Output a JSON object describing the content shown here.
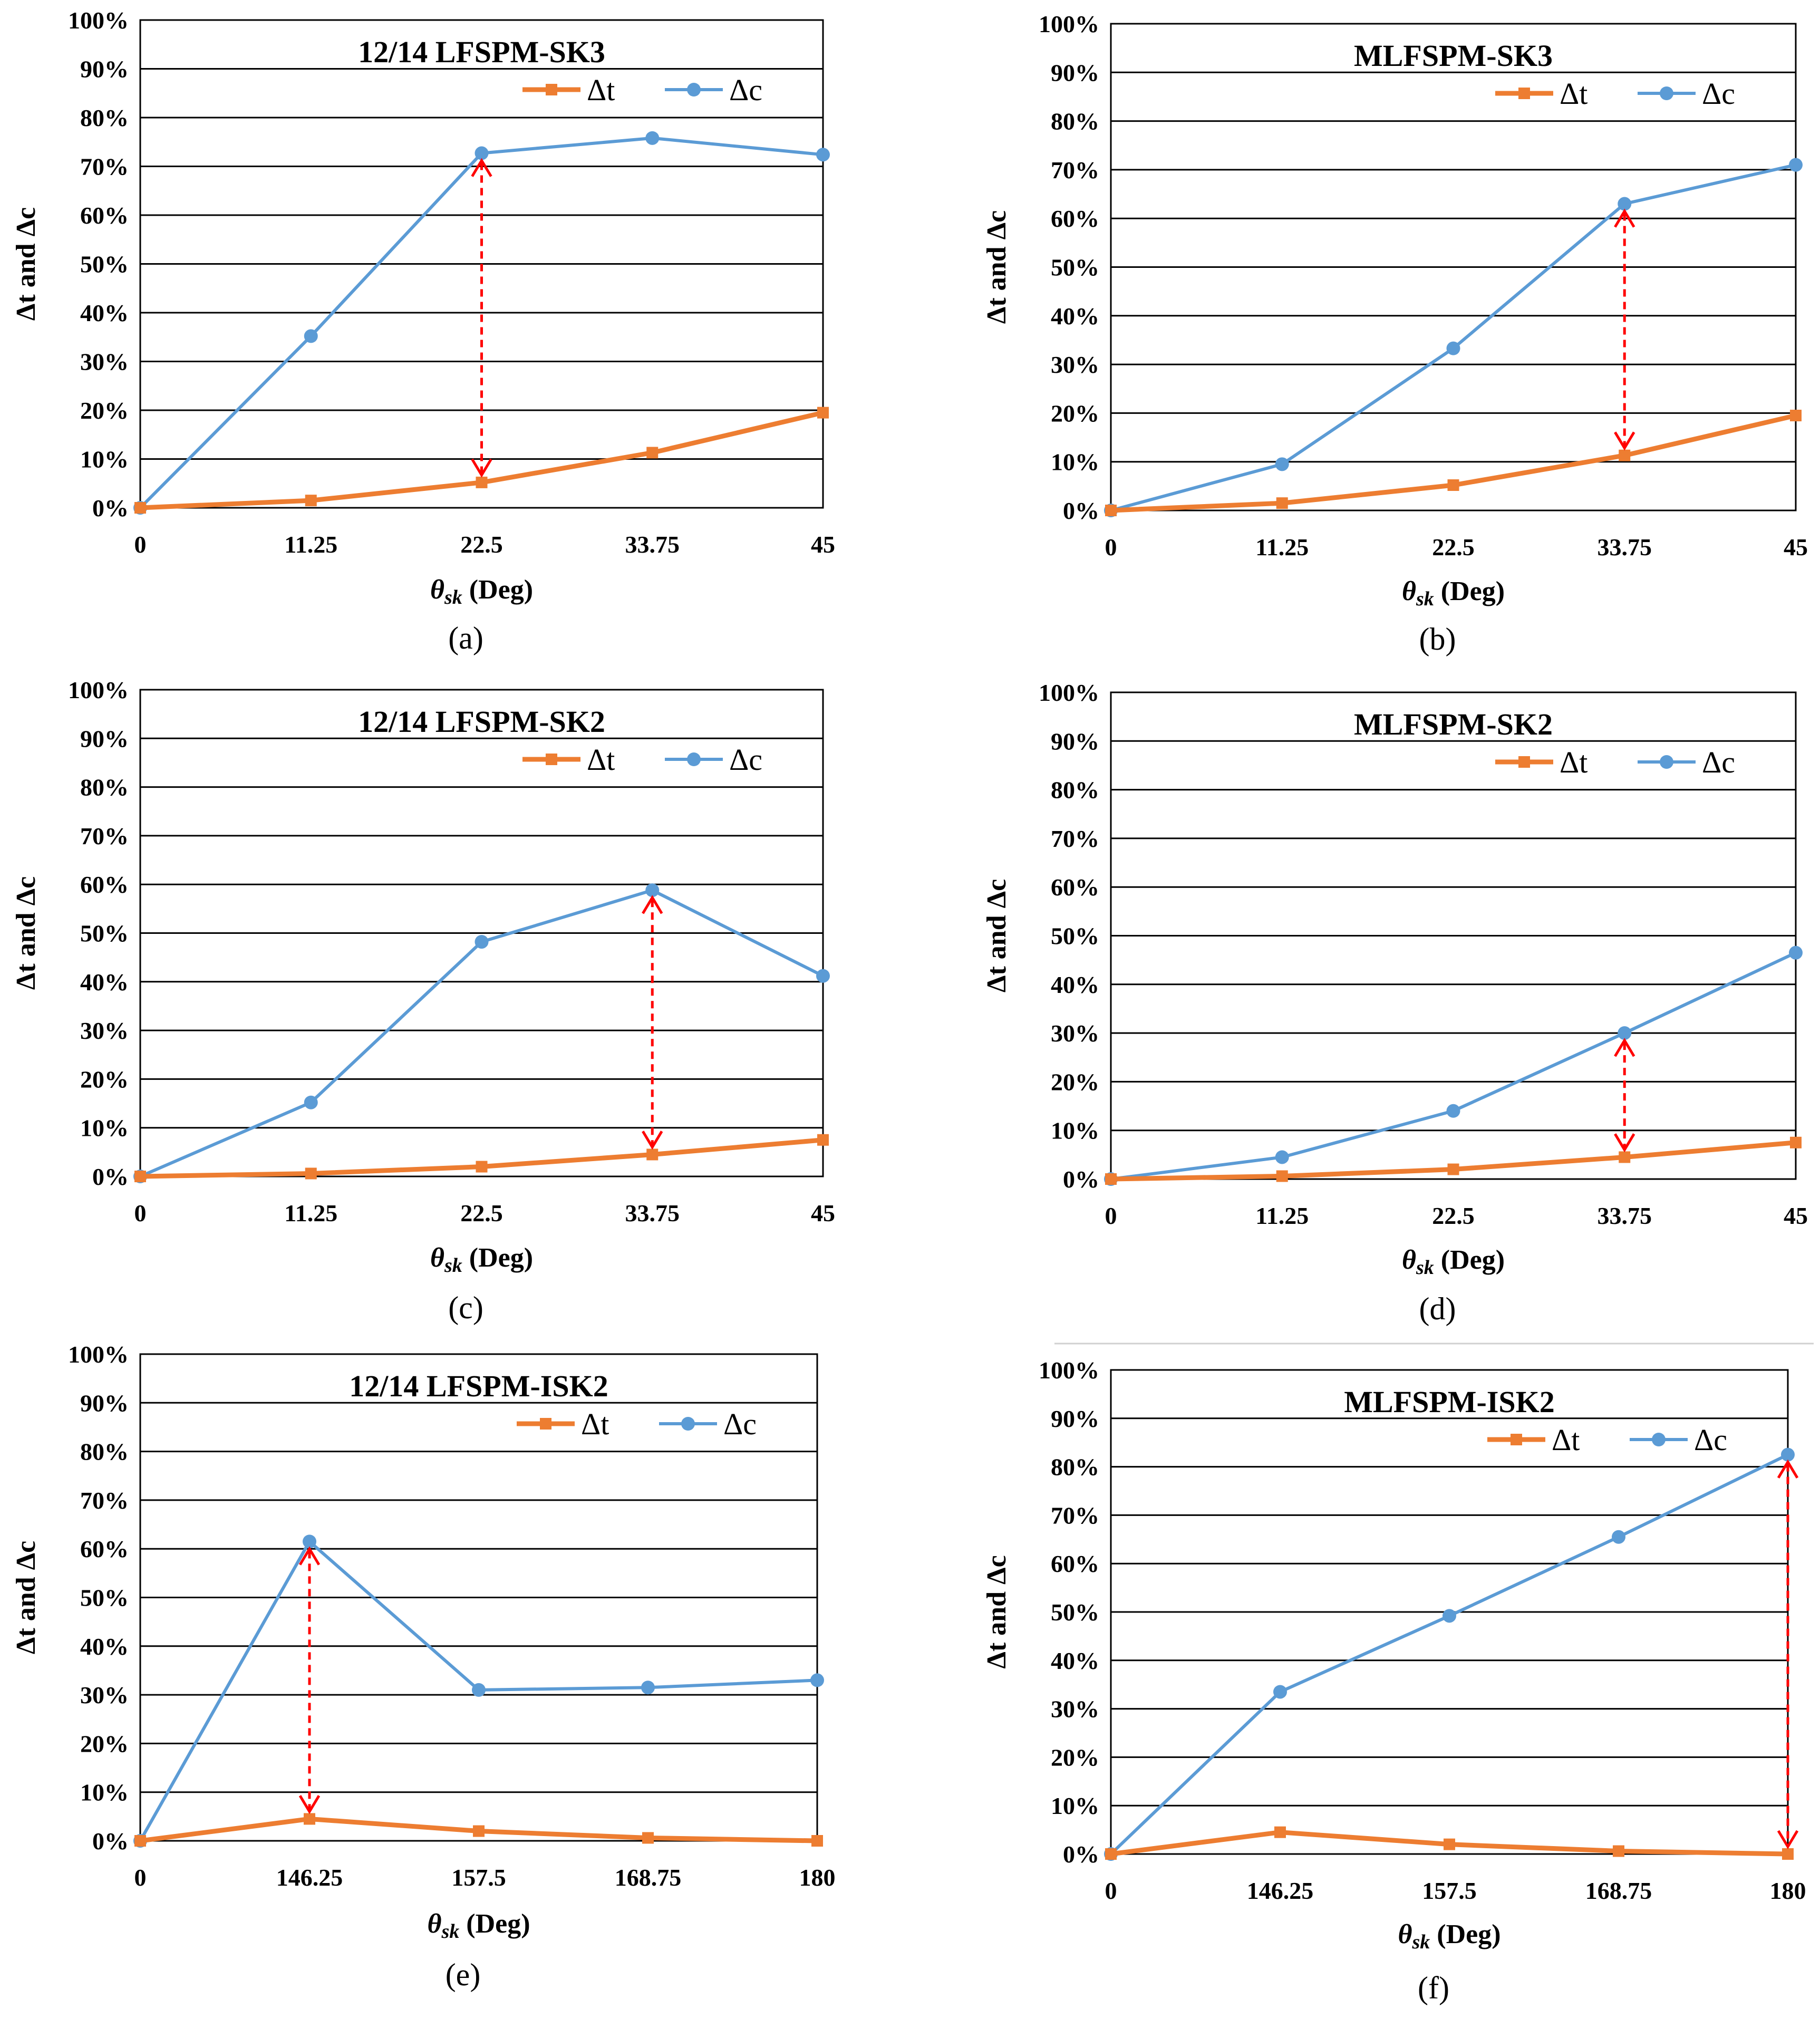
{
  "legend": {
    "dt_label": "Δt",
    "dc_label": "Δc"
  },
  "colors": {
    "dt": "#ED7D31",
    "dc": "#5B9BD5",
    "arrow": "#FF0000",
    "grid": "#000000",
    "background": "#FFFFFF"
  },
  "y_tick_labels": [
    "0%",
    "10%",
    "20%",
    "30%",
    "40%",
    "50%",
    "60%",
    "70%",
    "80%",
    "90%",
    "100%"
  ],
  "ylabel": "Δt and Δc",
  "xlabel_symbol": "θ",
  "xlabel_subscript": "sk",
  "xlabel_unit": "(Deg)",
  "chart_data": [
    {
      "type": "line",
      "caption": "(a)",
      "title": "12/14 LFSPM-SK3",
      "categories": [
        "0",
        "11.25",
        "22.5",
        "33.75",
        "45"
      ],
      "ylim": [
        0,
        100
      ],
      "grid": true,
      "legend_position": "top-right",
      "series": [
        {
          "name": "Δt",
          "values": [
            0,
            1.5,
            5.2,
            11.3,
            19.5
          ]
        },
        {
          "name": "Δc",
          "values": [
            0,
            35.2,
            72.7,
            75.8,
            72.4
          ]
        }
      ],
      "arrow_at": "22.5"
    },
    {
      "type": "line",
      "caption": "(b)",
      "title": "MLFSPM-SK3",
      "categories": [
        "0",
        "11.25",
        "22.5",
        "33.75",
        "45"
      ],
      "ylim": [
        0,
        100
      ],
      "grid": true,
      "legend_position": "top-right",
      "series": [
        {
          "name": "Δt",
          "values": [
            0,
            1.5,
            5.2,
            11.3,
            19.5
          ]
        },
        {
          "name": "Δc",
          "values": [
            0,
            9.5,
            33.3,
            63.0,
            71.0
          ]
        }
      ],
      "arrow_at": "33.75"
    },
    {
      "type": "line",
      "caption": "(c)",
      "title": "12/14 LFSPM-SK2",
      "categories": [
        "0",
        "11.25",
        "22.5",
        "33.75",
        "45"
      ],
      "ylim": [
        0,
        100
      ],
      "grid": true,
      "legend_position": "top-right",
      "series": [
        {
          "name": "Δt",
          "values": [
            0,
            0.6,
            2.0,
            4.5,
            7.5
          ]
        },
        {
          "name": "Δc",
          "values": [
            0,
            15.2,
            48.2,
            58.8,
            41.2
          ]
        }
      ],
      "arrow_at": "33.75"
    },
    {
      "type": "line",
      "caption": "(d)",
      "title": "MLFSPM-SK2",
      "categories": [
        "0",
        "11.25",
        "22.5",
        "33.75",
        "45"
      ],
      "ylim": [
        0,
        100
      ],
      "grid": true,
      "legend_position": "top-right",
      "series": [
        {
          "name": "Δt",
          "values": [
            0,
            0.6,
            2.0,
            4.5,
            7.5
          ]
        },
        {
          "name": "Δc",
          "values": [
            0,
            4.5,
            14.0,
            30.0,
            46.5
          ]
        }
      ],
      "arrow_at": "33.75"
    },
    {
      "type": "line",
      "caption": "(e)",
      "title": "12/14 LFSPM-ISK2",
      "categories": [
        "0",
        "146.25",
        "157.5",
        "168.75",
        "180"
      ],
      "ylim": [
        0,
        100
      ],
      "grid": true,
      "legend_position": "top-right",
      "series": [
        {
          "name": "Δt",
          "values": [
            0,
            4.5,
            2.0,
            0.6,
            0
          ]
        },
        {
          "name": "Δc",
          "values": [
            0,
            61.5,
            31.0,
            31.5,
            33.0
          ]
        }
      ],
      "arrow_at": "146.25"
    },
    {
      "type": "line",
      "caption": "(f)",
      "title": "MLFSPM-ISK2",
      "categories": [
        "0",
        "146.25",
        "157.5",
        "168.75",
        "180"
      ],
      "ylim": [
        0,
        100
      ],
      "grid": true,
      "legend_position": "top-right",
      "series": [
        {
          "name": "Δt",
          "values": [
            0,
            4.5,
            2.0,
            0.6,
            0
          ]
        },
        {
          "name": "Δc",
          "values": [
            0,
            33.5,
            49.2,
            65.5,
            82.5
          ]
        }
      ],
      "arrow_at": "180"
    }
  ]
}
